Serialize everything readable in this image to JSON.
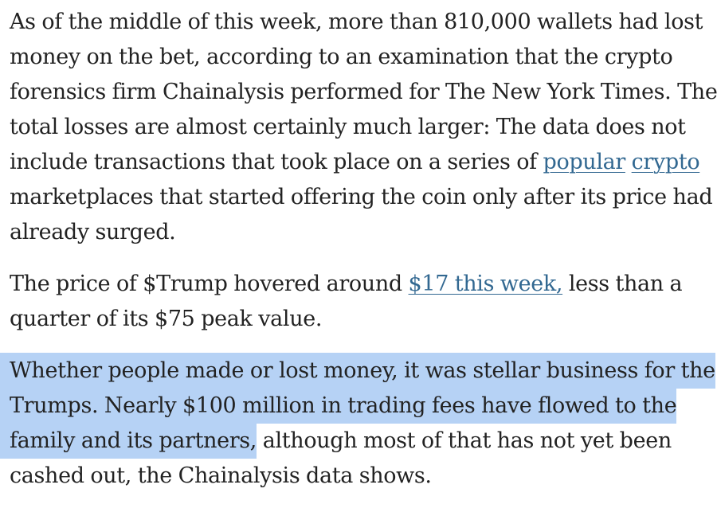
{
  "paragraph1": {
    "line1": "As of the middle of this week, more than 810,000 wallets had lost",
    "line2": "money on the bet, according to an examination that the crypto",
    "line3": "forensics firm Chainalysis performed for The New York Times. The",
    "line4": "total losses are almost certainly much larger: The data does not",
    "line5_text": "include transactions that took place on a series of ",
    "link_popular": "popular",
    "link_crypto": "crypto",
    "line6": "marketplaces that started offering the coin only after its price had",
    "line7": "already surged."
  },
  "paragraph2": {
    "line1_text": "The price of $Trump hovered around ",
    "link_price": "$17 this week,",
    "line1_tail": " less than a",
    "line2": "quarter of its $75 peak value."
  },
  "paragraph3": {
    "line1_selected": "Whether people made or lost money, it was stellar business for the",
    "line2_selected": "Trumps. Nearly $100 million in trading fees have flowed to the",
    "line3_selected": "family and its partners,",
    "line3_tail": " although most of that has not yet been",
    "line4": "cashed out, the Chainalysis data shows."
  },
  "colors": {
    "text": "#222222",
    "link": "#326891",
    "selection": "#b6d2f5",
    "background": "#ffffff"
  }
}
